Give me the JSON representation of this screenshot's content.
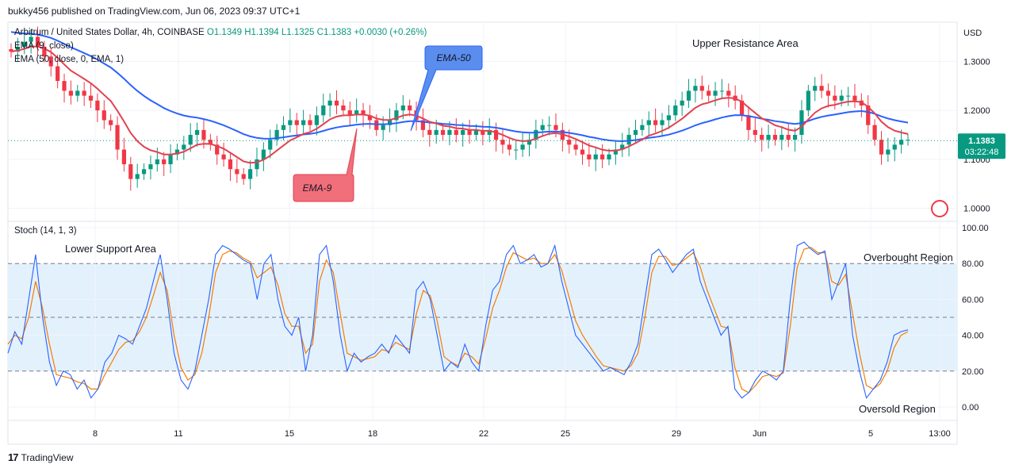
{
  "publisher": "bukky456 published on TradingView.com, Jun 06, 2023 09:37 UTC+1",
  "footer": {
    "brand": "TradingView",
    "logo_icon": "tv-logo-icon"
  },
  "header": {
    "symbol": "Arbitrum / United States Dollar, 4h, COINBASE",
    "ohlc": "O1.1349  H1.1394  L1.1325  C1.1383  +0.0030 (+0.26%)",
    "ema9_label": "EMA (9, close)",
    "ema50_label": "EMA (50, close, 0, EMA, 1)"
  },
  "price_axis": {
    "currency": "USD",
    "ticks": [
      "1.3000",
      "1.2000",
      "1.1000",
      "1.0000"
    ],
    "current_price": "1.1383",
    "countdown": "03:22:48"
  },
  "stoch": {
    "label": "Stoch (14, 1, 3)",
    "ticks": [
      "100.00",
      "80.00",
      "60.00",
      "40.00",
      "20.00",
      "0.00"
    ]
  },
  "time_axis": [
    "8",
    "11",
    "15",
    "18",
    "22",
    "25",
    "29",
    "Jun",
    "5",
    "13:00"
  ],
  "annotations": {
    "ema50": "EMA-50",
    "ema9": "EMA-9",
    "upper_resistance": "Upper Resistance Area",
    "lower_support": "Lower Support Area",
    "overbought": "Overbought Region",
    "oversold": "Oversold Region"
  },
  "colors": {
    "up": "#089981",
    "down": "#f23645",
    "ema9": "#e3414f",
    "ema50": "#2962ff",
    "stoch_k": "#2962ff",
    "stoch_d": "#f57c00",
    "stoch_band": "#e3f1fd"
  },
  "chart_data": {
    "type": "candlestick",
    "price_ylim": [
      0.98,
      1.38
    ],
    "stoch_ylim": [
      0,
      100
    ],
    "close_series_approx": [
      1.32,
      1.33,
      1.34,
      1.35,
      1.33,
      1.31,
      1.29,
      1.26,
      1.24,
      1.23,
      1.24,
      1.23,
      1.22,
      1.2,
      1.18,
      1.17,
      1.12,
      1.09,
      1.06,
      1.07,
      1.08,
      1.09,
      1.1,
      1.09,
      1.11,
      1.12,
      1.13,
      1.15,
      1.16,
      1.14,
      1.13,
      1.11,
      1.1,
      1.08,
      1.07,
      1.06,
      1.08,
      1.1,
      1.12,
      1.14,
      1.16,
      1.17,
      1.18,
      1.17,
      1.18,
      1.17,
      1.19,
      1.21,
      1.22,
      1.21,
      1.2,
      1.19,
      1.2,
      1.19,
      1.18,
      1.16,
      1.17,
      1.18,
      1.2,
      1.21,
      1.2,
      1.18,
      1.16,
      1.15,
      1.16,
      1.15,
      1.16,
      1.15,
      1.16,
      1.15,
      1.16,
      1.15,
      1.16,
      1.14,
      1.13,
      1.12,
      1.12,
      1.13,
      1.14,
      1.16,
      1.17,
      1.17,
      1.16,
      1.14,
      1.13,
      1.12,
      1.11,
      1.1,
      1.11,
      1.1,
      1.11,
      1.12,
      1.13,
      1.15,
      1.16,
      1.17,
      1.18,
      1.17,
      1.18,
      1.19,
      1.21,
      1.22,
      1.24,
      1.25,
      1.24,
      1.23,
      1.24,
      1.24,
      1.23,
      1.22,
      1.19,
      1.16,
      1.15,
      1.14,
      1.15,
      1.14,
      1.15,
      1.14,
      1.15,
      1.2,
      1.24,
      1.25,
      1.24,
      1.23,
      1.22,
      1.23,
      1.23,
      1.22,
      1.21,
      1.17,
      1.14,
      1.11,
      1.12,
      1.13,
      1.14,
      1.14
    ],
    "stoch_k_approx": [
      30,
      42,
      35,
      60,
      85,
      50,
      25,
      12,
      20,
      18,
      10,
      15,
      5,
      10,
      25,
      30,
      40,
      38,
      35,
      45,
      55,
      70,
      85,
      60,
      30,
      15,
      10,
      20,
      40,
      60,
      85,
      90,
      88,
      85,
      82,
      80,
      60,
      80,
      85,
      60,
      45,
      40,
      50,
      20,
      40,
      85,
      90,
      70,
      40,
      20,
      30,
      25,
      28,
      30,
      35,
      30,
      40,
      35,
      30,
      65,
      70,
      60,
      40,
      20,
      25,
      22,
      35,
      25,
      20,
      45,
      65,
      70,
      85,
      90,
      80,
      82,
      85,
      78,
      80,
      90,
      70,
      55,
      40,
      35,
      30,
      25,
      20,
      22,
      20,
      18,
      25,
      35,
      60,
      85,
      88,
      82,
      75,
      80,
      85,
      88,
      70,
      60,
      50,
      40,
      45,
      10,
      5,
      8,
      15,
      20,
      18,
      15,
      20,
      60,
      90,
      92,
      88,
      85,
      87,
      60,
      70,
      80,
      40,
      20,
      5,
      10,
      15,
      25,
      40,
      42,
      43
    ],
    "stoch_d_approx": [
      35,
      40,
      38,
      50,
      70,
      55,
      35,
      18,
      17,
      16,
      14,
      13,
      10,
      10,
      18,
      25,
      32,
      36,
      37,
      42,
      50,
      62,
      75,
      65,
      40,
      22,
      15,
      18,
      30,
      50,
      75,
      85,
      87,
      86,
      83,
      81,
      72,
      75,
      78,
      68,
      52,
      45,
      45,
      30,
      35,
      70,
      82,
      75,
      52,
      30,
      28,
      26,
      27,
      28,
      32,
      31,
      36,
      34,
      32,
      52,
      65,
      62,
      48,
      28,
      25,
      23,
      30,
      28,
      24,
      38,
      55,
      65,
      78,
      86,
      84,
      82,
      83,
      80,
      80,
      85,
      76,
      62,
      48,
      40,
      34,
      28,
      23,
      22,
      21,
      20,
      23,
      30,
      50,
      75,
      84,
      84,
      79,
      80,
      83,
      86,
      78,
      65,
      55,
      45,
      44,
      22,
      10,
      8,
      12,
      17,
      18,
      17,
      19,
      45,
      78,
      88,
      89,
      86,
      86,
      70,
      68,
      74,
      52,
      30,
      12,
      10,
      13,
      20,
      33,
      40,
      42
    ]
  }
}
